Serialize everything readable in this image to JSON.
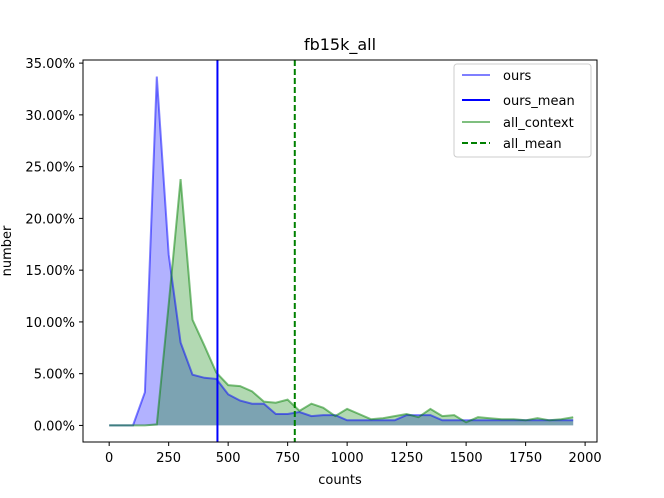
{
  "chart_data": {
    "type": "area",
    "title": "fb15k_all",
    "xlabel": "counts",
    "ylabel": "number",
    "xlim": [
      -110,
      2050
    ],
    "ylim": [
      -0.016,
      0.353
    ],
    "xticks": [
      0,
      250,
      500,
      750,
      1000,
      1250,
      1500,
      1750,
      2000
    ],
    "xtick_labels": [
      "0",
      "250",
      "500",
      "750",
      "1000",
      "1250",
      "1500",
      "1750",
      "2000"
    ],
    "yticks": [
      0,
      0.05,
      0.1,
      0.15,
      0.2,
      0.25,
      0.3,
      0.35
    ],
    "ytick_labels": [
      "0.00%",
      "5.00%",
      "10.00%",
      "15.00%",
      "20.00%",
      "25.00%",
      "30.00%",
      "35.00%"
    ],
    "grid": false,
    "legend_position": "top-right",
    "x": [
      0,
      50,
      100,
      150,
      200,
      250,
      300,
      350,
      400,
      450,
      500,
      550,
      600,
      650,
      700,
      750,
      800,
      850,
      900,
      950,
      1000,
      1050,
      1100,
      1150,
      1200,
      1250,
      1300,
      1350,
      1400,
      1450,
      1500,
      1550,
      1600,
      1650,
      1700,
      1750,
      1800,
      1850,
      1900,
      1950
    ],
    "series": [
      {
        "name": "ours",
        "kind": "area",
        "color": "#0000ff",
        "values": [
          0,
          0,
          0,
          0.032,
          0.337,
          0.165,
          0.08,
          0.049,
          0.046,
          0.045,
          0.03,
          0.024,
          0.021,
          0.021,
          0.011,
          0.011,
          0.013,
          0.009,
          0.01,
          0.01,
          0.005,
          0.005,
          0.005,
          0.005,
          0.005,
          0.01,
          0.01,
          0.01,
          0.005,
          0.005,
          0.005,
          0.005,
          0.005,
          0.005,
          0.005,
          0.005,
          0.005,
          0.005,
          0.005,
          0.005
        ]
      },
      {
        "name": "all_context",
        "kind": "area",
        "color": "#008000",
        "values": [
          0,
          0,
          0,
          0,
          0.001,
          0.117,
          0.238,
          0.102,
          0.077,
          0.051,
          0.039,
          0.038,
          0.033,
          0.023,
          0.022,
          0.025,
          0.014,
          0.021,
          0.017,
          0.009,
          0.016,
          0.011,
          0.006,
          0.007,
          0.009,
          0.011,
          0.008,
          0.016,
          0.009,
          0.01,
          0.003,
          0.008,
          0.007,
          0.006,
          0.006,
          0.005,
          0.007,
          0.005,
          0.006,
          0.008
        ]
      }
    ],
    "vlines": [
      {
        "name": "ours_mean",
        "x": 455,
        "color": "#0000ff",
        "style": "solid"
      },
      {
        "name": "all_mean",
        "x": 780,
        "color": "#008000",
        "style": "dashed"
      }
    ],
    "legend": [
      "ours",
      "ours_mean",
      "all_context",
      "all_mean"
    ]
  }
}
